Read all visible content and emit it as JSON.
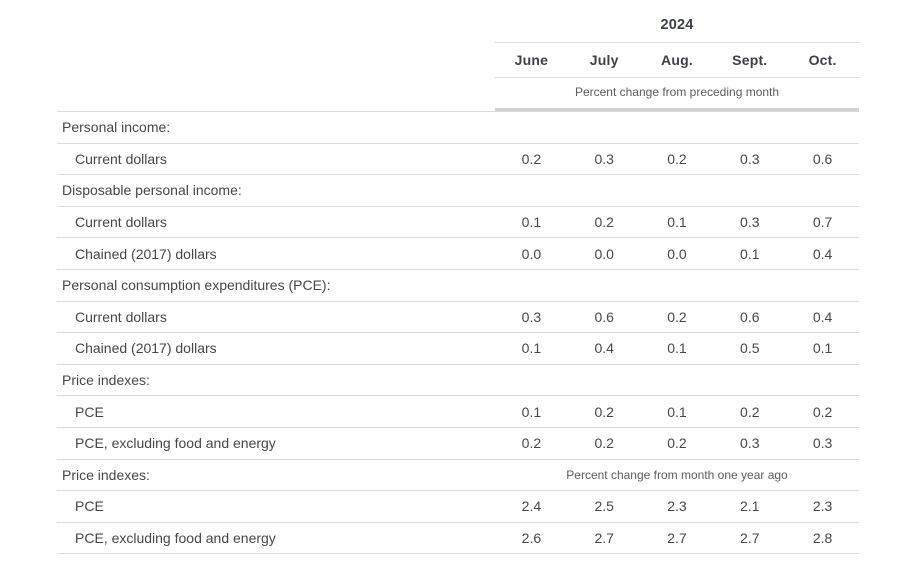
{
  "colors": {
    "background": "#ffffff",
    "text": "#474747",
    "header_text": "#3c4049",
    "subheader_text": "#5c5c5c",
    "thin_line": "#dcdcdc",
    "thick_line": "#d2d2d2"
  },
  "chart_data": {
    "type": "table",
    "year": "2024",
    "columns": [
      "June",
      "July",
      "Aug.",
      "Sept.",
      "Oct."
    ],
    "unit_subheader_top": "Percent change from preceding month",
    "unit_subheader_bottom": "Percent change from month one year ago",
    "rows": [
      {
        "type": "section",
        "label": "Personal income:"
      },
      {
        "type": "data",
        "label": "Current dollars",
        "values": [
          "0.2",
          "0.3",
          "0.2",
          "0.3",
          "0.6"
        ]
      },
      {
        "type": "section",
        "label": "Disposable personal income:"
      },
      {
        "type": "data",
        "label": "Current dollars",
        "values": [
          "0.1",
          "0.2",
          "0.1",
          "0.3",
          "0.7"
        ]
      },
      {
        "type": "data",
        "label": "Chained (2017) dollars",
        "values": [
          "0.0",
          "0.0",
          "0.0",
          "0.1",
          "0.4"
        ]
      },
      {
        "type": "section",
        "label": "Personal consumption expenditures (PCE):"
      },
      {
        "type": "data",
        "label": "Current dollars",
        "values": [
          "0.3",
          "0.6",
          "0.2",
          "0.6",
          "0.4"
        ]
      },
      {
        "type": "data",
        "label": "Chained (2017) dollars",
        "values": [
          "0.1",
          "0.4",
          "0.1",
          "0.5",
          "0.1"
        ]
      },
      {
        "type": "section",
        "label": "Price indexes:"
      },
      {
        "type": "data",
        "label": "PCE",
        "values": [
          "0.1",
          "0.2",
          "0.1",
          "0.2",
          "0.2"
        ]
      },
      {
        "type": "data",
        "label": "PCE, excluding food and energy",
        "values": [
          "0.2",
          "0.2",
          "0.2",
          "0.3",
          "0.3"
        ]
      },
      {
        "type": "section_note",
        "label": "Price indexes:",
        "note": "Percent change from month one year ago"
      },
      {
        "type": "data",
        "label": "PCE",
        "values": [
          "2.4",
          "2.5",
          "2.3",
          "2.1",
          "2.3"
        ]
      },
      {
        "type": "data",
        "label": "PCE, excluding food and energy",
        "values": [
          "2.6",
          "2.7",
          "2.7",
          "2.7",
          "2.8"
        ]
      }
    ]
  }
}
